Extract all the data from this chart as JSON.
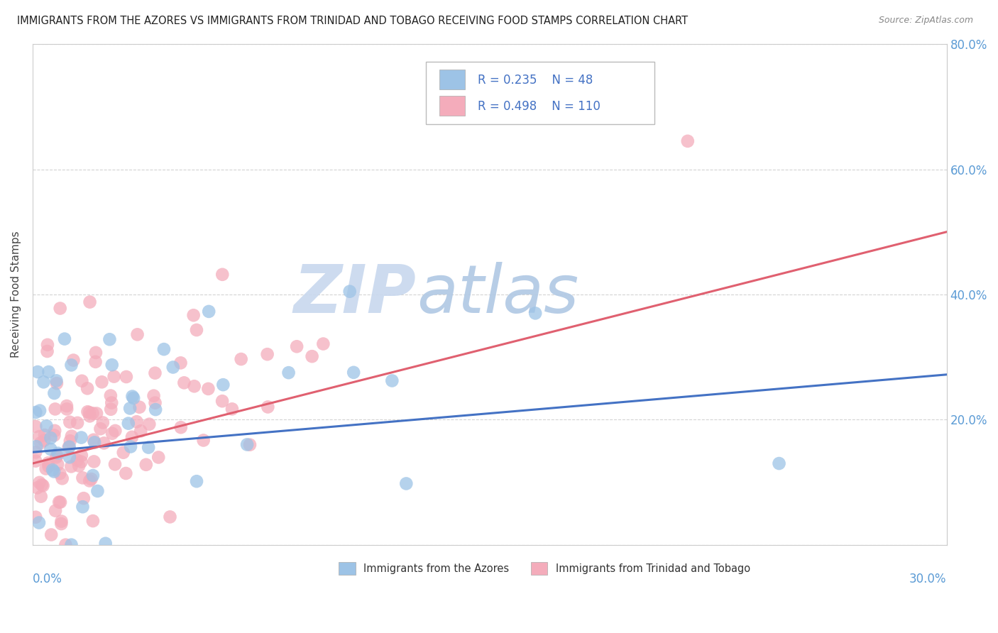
{
  "title": "IMMIGRANTS FROM THE AZORES VS IMMIGRANTS FROM TRINIDAD AND TOBAGO RECEIVING FOOD STAMPS CORRELATION CHART",
  "source": "Source: ZipAtlas.com",
  "ylabel_axis": "Receiving Food Stamps",
  "legend_label_azores": "Immigrants from the Azores",
  "legend_label_tt": "Immigrants from Trinidad and Tobago",
  "R_azores": 0.235,
  "N_azores": 48,
  "R_tt": 0.498,
  "N_tt": 110,
  "color_azores": "#9DC3E6",
  "color_tt": "#F4ACBB",
  "trendline_azores_color": "#4472C4",
  "trendline_tt_color": "#E06070",
  "background_color": "#ffffff",
  "watermark_text": "ZIPatlas",
  "watermark_color_zip": "#c8d8ee",
  "watermark_color_atlas": "#b0c8e4",
  "right_tick_color": "#5B9BD5",
  "grid_color": "#c8c8c8",
  "trend_az_x0": 0.0,
  "trend_az_y0": 0.148,
  "trend_az_x1": 0.3,
  "trend_az_y1": 0.272,
  "trend_tt_x0": 0.0,
  "trend_tt_y0": 0.13,
  "trend_tt_x1": 0.3,
  "trend_tt_y1": 0.5,
  "xlim": [
    0.0,
    0.3
  ],
  "ylim": [
    0.0,
    0.8
  ],
  "yticks": [
    0.0,
    0.2,
    0.4,
    0.6,
    0.8
  ],
  "ytick_labels": [
    "",
    "20.0%",
    "40.0%",
    "60.0%",
    "80.0%"
  ],
  "xtick_label_left": "0.0%",
  "xtick_label_right": "30.0%"
}
